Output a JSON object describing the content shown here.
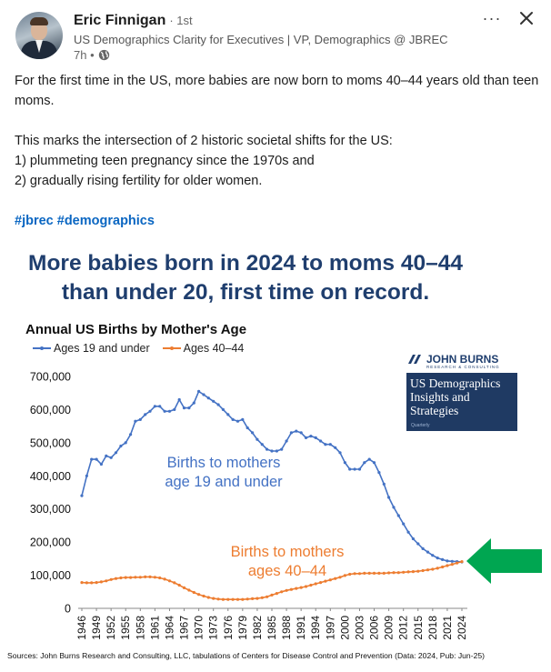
{
  "post": {
    "author": "Eric Finnigan",
    "degree": "· 1st",
    "headline": "US Demographics Clarity for Executives | VP, Demographics @ JBREC",
    "time": "7h •",
    "text_line1": "For the first time in the US, more babies are now born to moms 40–44 years old than teen moms.",
    "text_line2": "This marks the intersection of 2 historic societal shifts for the US:",
    "text_line3": "1) plummeting teen pregnancy since the 1970s and",
    "text_line4": "2) gradually rising fertility for older women.",
    "hashtag1": "#jbrec",
    "hashtag2": "#demographics",
    "more_label": "···",
    "close_icon": "close-icon",
    "globe_icon": "globe-icon"
  },
  "figure": {
    "title_line1": "More babies born in 2024 to moms 40–44",
    "title_line2": "than under 20, first time on record.",
    "brand_name": "JOHN BURNS",
    "brand_tagline": "RESEARCH & CONSULTING",
    "brand_box_line1": "US Demographics",
    "brand_box_line2": "Insights and",
    "brand_box_line3": "Strategies",
    "brand_box_small": "Quarterly",
    "source": "Sources: John Burns Research and Consulting, LLC, tabulations of Centers for Disease Control and Prevention (Data: 2024, Pub: Jun-25)",
    "colors": {
      "title": "#1f3e6e",
      "teen": "#4472c4",
      "older": "#ed7d31",
      "arrow": "#00a651"
    }
  },
  "chart_data": {
    "type": "line",
    "title": "Annual US Births by Mother's Age",
    "ylim": [
      0,
      700000
    ],
    "yticks": [
      "0",
      "100,000",
      "200,000",
      "300,000",
      "400,000",
      "500,000",
      "600,000",
      "700,000"
    ],
    "xtick_labels": [
      "1946",
      "1949",
      "1952",
      "1955",
      "1958",
      "1961",
      "1964",
      "1967",
      "1970",
      "1973",
      "1976",
      "1979",
      "1982",
      "1985",
      "1988",
      "1991",
      "1994",
      "1997",
      "2000",
      "2003",
      "2006",
      "2009",
      "2012",
      "2015",
      "2018",
      "2021",
      "2024"
    ],
    "x_start": 1946,
    "x_end": 2024,
    "annotations": {
      "teen_line1": "Births to mothers",
      "teen_line2": "age 19 and under",
      "older_line1": "Births to mothers",
      "older_line2": "ages 40–44"
    },
    "series": [
      {
        "name": "Ages 19 and under",
        "color": "#4472c4",
        "values": [
          340000,
          400000,
          450000,
          450000,
          435000,
          460000,
          455000,
          470000,
          490000,
          500000,
          525000,
          565000,
          570000,
          585000,
          595000,
          610000,
          610000,
          595000,
          595000,
          600000,
          630000,
          605000,
          605000,
          620000,
          655000,
          645000,
          635000,
          625000,
          615000,
          600000,
          585000,
          570000,
          565000,
          570000,
          545000,
          530000,
          510000,
          495000,
          480000,
          475000,
          475000,
          480000,
          505000,
          530000,
          535000,
          530000,
          515000,
          520000,
          515000,
          505000,
          495000,
          495000,
          485000,
          470000,
          440000,
          420000,
          420000,
          420000,
          440000,
          450000,
          440000,
          410000,
          375000,
          335000,
          305000,
          280000,
          255000,
          230000,
          210000,
          195000,
          180000,
          170000,
          160000,
          152000,
          147000,
          143000,
          142000,
          141000,
          140000
        ]
      },
      {
        "name": "Ages 40–44",
        "color": "#ed7d31",
        "values": [
          78000,
          77000,
          77000,
          78000,
          80000,
          83000,
          87000,
          90000,
          92000,
          93000,
          93000,
          94000,
          94000,
          95000,
          95000,
          94000,
          92000,
          88000,
          83000,
          77000,
          70000,
          62000,
          55000,
          48000,
          42000,
          37000,
          33000,
          30000,
          28000,
          27000,
          27000,
          27000,
          27000,
          27000,
          28000,
          29000,
          30000,
          32000,
          35000,
          40000,
          45000,
          50000,
          54000,
          57000,
          60000,
          63000,
          66000,
          70000,
          74000,
          78000,
          82000,
          86000,
          90000,
          94000,
          99000,
          103000,
          105000,
          105000,
          106000,
          106000,
          106000,
          106000,
          106000,
          107000,
          108000,
          108000,
          109000,
          110000,
          111000,
          112000,
          114000,
          116000,
          118000,
          121000,
          125000,
          129000,
          133000,
          137000,
          141000
        ]
      }
    ]
  }
}
